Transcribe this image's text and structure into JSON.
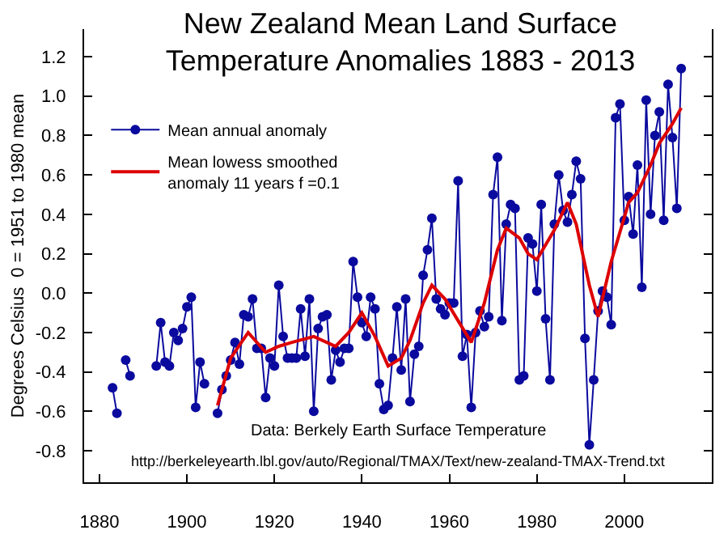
{
  "chart_data": {
    "type": "line",
    "title": "New Zealand Mean Land Surface\nTemperature Anomalies 1883 - 2013",
    "ylabel": "Degrees Celsius  0 = 1951 to 1980 mean",
    "annotations": [
      "Data: Berkely Earth Surface Temperature",
      "http://berkeleyearth.lbl.gov/auto/Regional/TMAX/Text/new-zealand-TMAX-Trend.txt"
    ],
    "xlim": [
      1876.5,
      2020
    ],
    "ylim": [
      -0.96,
      1.34
    ],
    "xticks": [
      1880,
      1900,
      1920,
      1940,
      1960,
      1980,
      2000
    ],
    "yticks": [
      -0.8,
      -0.6,
      -0.4,
      -0.2,
      {
        "value": 0,
        "label": "0.0"
      },
      0.2,
      0.4,
      0.6,
      0.8,
      {
        "value": 1,
        "label": "1.0"
      },
      1.2
    ],
    "legend": "top left",
    "series": [
      {
        "name": "Mean annual anomaly",
        "color": "#0a0a9e",
        "marker": "circle",
        "x": [
          1883,
          1884,
          1885,
          1886,
          1887,
          1888,
          1889,
          1890,
          1891,
          1892,
          1893,
          1894,
          1895,
          1896,
          1897,
          1898,
          1899,
          1900,
          1901,
          1902,
          1903,
          1904,
          1905,
          1906,
          1907,
          1908,
          1909,
          1910,
          1911,
          1912,
          1913,
          1914,
          1915,
          1916,
          1917,
          1918,
          1919,
          1920,
          1921,
          1922,
          1923,
          1924,
          1925,
          1926,
          1927,
          1928,
          1929,
          1930,
          1931,
          1932,
          1933,
          1934,
          1935,
          1936,
          1937,
          1938,
          1939,
          1940,
          1941,
          1942,
          1943,
          1944,
          1945,
          1946,
          1947,
          1948,
          1949,
          1950,
          1951,
          1952,
          1953,
          1954,
          1955,
          1956,
          1957,
          1958,
          1959,
          1960,
          1961,
          1962,
          1963,
          1964,
          1965,
          1966,
          1967,
          1968,
          1969,
          1970,
          1971,
          1972,
          1973,
          1974,
          1975,
          1976,
          1977,
          1978,
          1979,
          1980,
          1981,
          1982,
          1983,
          1984,
          1985,
          1986,
          1987,
          1988,
          1989,
          1990,
          1991,
          1992,
          1993,
          1994,
          1995,
          1996,
          1997,
          1998,
          1999,
          2000,
          2001,
          2002,
          2003,
          2004,
          2005,
          2006,
          2007,
          2008,
          2009,
          2010,
          2011,
          2012,
          2013
        ],
        "values": [
          -0.48,
          -0.61,
          null,
          -0.34,
          -0.42,
          null,
          null,
          null,
          null,
          null,
          -0.37,
          -0.15,
          -0.35,
          -0.37,
          -0.2,
          -0.24,
          -0.18,
          -0.07,
          -0.02,
          -0.58,
          -0.35,
          -0.46,
          null,
          null,
          -0.61,
          -0.49,
          -0.42,
          -0.34,
          -0.25,
          -0.36,
          -0.11,
          -0.12,
          -0.03,
          -0.28,
          -0.28,
          -0.53,
          -0.33,
          -0.37,
          0.04,
          -0.22,
          -0.33,
          -0.33,
          -0.33,
          -0.08,
          -0.32,
          -0.03,
          -0.6,
          -0.18,
          -0.12,
          -0.11,
          -0.44,
          -0.29,
          -0.35,
          -0.28,
          -0.28,
          0.16,
          -0.02,
          -0.15,
          -0.22,
          -0.02,
          -0.08,
          -0.46,
          -0.59,
          -0.57,
          -0.33,
          -0.07,
          -0.39,
          -0.03,
          -0.55,
          -0.31,
          -0.27,
          0.09,
          0.22,
          0.38,
          -0.03,
          -0.08,
          -0.11,
          -0.05,
          -0.05,
          0.57,
          -0.32,
          -0.21,
          -0.58,
          -0.2,
          -0.09,
          -0.17,
          -0.12,
          0.5,
          0.69,
          -0.14,
          0.35,
          0.45,
          0.43,
          -0.44,
          -0.42,
          0.28,
          0.25,
          0.01,
          0.45,
          -0.13,
          -0.44,
          0.35,
          0.6,
          0.42,
          0.36,
          0.5,
          0.67,
          0.58,
          -0.23,
          -0.77,
          -0.44,
          -0.09,
          0.01,
          -0.02,
          -0.16,
          0.89,
          0.96,
          0.37,
          0.49,
          0.3,
          0.65,
          0.03,
          0.98,
          0.4,
          0.8,
          0.92,
          0.37,
          1.06,
          0.79,
          0.43,
          1.14
        ]
      },
      {
        "name": "Mean lowess smoothed\nanomaly 11 years f =0.1",
        "color": "#dd0000",
        "marker": "none",
        "x": [
          1907,
          1910,
          1914,
          1918,
          1921,
          1924,
          1929,
          1934,
          1937,
          1940,
          1943,
          1946,
          1949,
          1951,
          1954,
          1956,
          1959,
          1962,
          1965,
          1968,
          1971,
          1973,
          1976,
          1978,
          1980,
          1984,
          1987,
          1989,
          1992,
          1994,
          1997,
          2001,
          2003,
          2006,
          2008,
          2011,
          2013
        ],
        "values": [
          -0.57,
          -0.33,
          -0.2,
          -0.3,
          -0.27,
          -0.25,
          -0.22,
          -0.27,
          -0.2,
          -0.1,
          -0.22,
          -0.37,
          -0.33,
          -0.24,
          -0.05,
          0.04,
          -0.03,
          -0.14,
          -0.25,
          -0.05,
          0.22,
          0.33,
          0.28,
          0.2,
          0.17,
          0.32,
          0.46,
          0.35,
          0.04,
          -0.12,
          0.16,
          0.46,
          0.51,
          0.65,
          0.76,
          0.86,
          0.94
        ]
      }
    ]
  }
}
